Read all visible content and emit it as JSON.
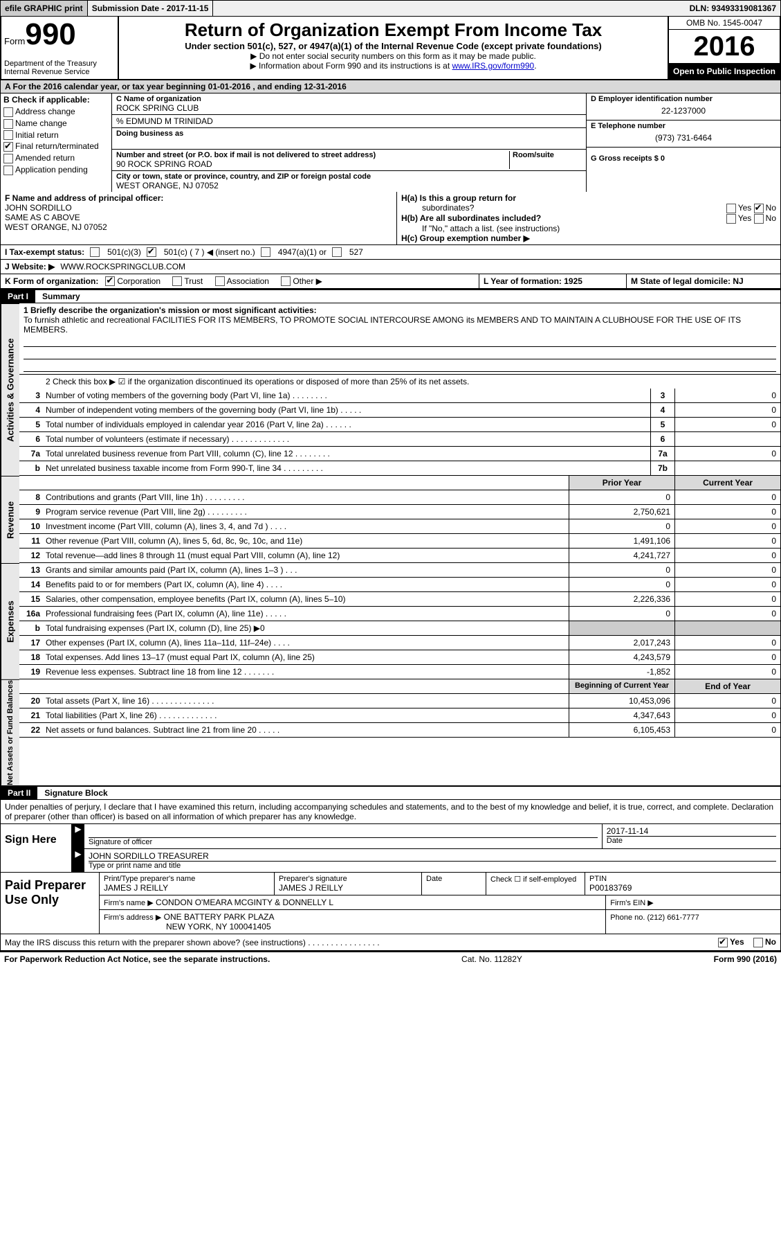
{
  "topbar": {
    "efile": "efile GRAPHIC print",
    "submission": "Submission Date - 2017-11-15",
    "dln": "DLN: 93493319081367"
  },
  "header": {
    "form_word": "Form",
    "form_number": "990",
    "dept1": "Department of the Treasury",
    "dept2": "Internal Revenue Service",
    "title": "Return of Organization Exempt From Income Tax",
    "subtitle": "Under section 501(c), 527, or 4947(a)(1) of the Internal Revenue Code (except private foundations)",
    "note1": "▶ Do not enter social security numbers on this form as it may be made public.",
    "note2_pre": "▶ Information about Form 990 and its instructions is at ",
    "note2_link": "www.IRS.gov/form990",
    "note2_post": ".",
    "omb": "OMB No. 1545-0047",
    "year": "2016",
    "inspect": "Open to Public Inspection"
  },
  "sectionA": "A   For the 2016 calendar year, or tax year beginning 01-01-2016   , and ending 12-31-2016",
  "colB": {
    "hdr": "B Check if applicable:",
    "items": [
      "Address change",
      "Name change",
      "Initial return",
      "Final return/terminated",
      "Amended return",
      "Application pending"
    ],
    "checked_idx": 3
  },
  "colC": {
    "name_lbl": "C Name of organization",
    "name": "ROCK SPRING CLUB",
    "care_of": "% EDMUND M TRINIDAD",
    "dba_lbl": "Doing business as",
    "dba": "",
    "addr_lbl": "Number and street (or P.O. box if mail is not delivered to street address)",
    "room_lbl": "Room/suite",
    "addr": "90 ROCK SPRING ROAD",
    "city_lbl": "City or town, state or province, country, and ZIP or foreign postal code",
    "city": "WEST ORANGE, NJ  07052"
  },
  "colD": {
    "ein_lbl": "D Employer identification number",
    "ein": "22-1237000",
    "tel_lbl": "E Telephone number",
    "tel": "(973) 731-6464",
    "gross_lbl": "G Gross receipts $ 0"
  },
  "rowF": {
    "lbl": "F Name and address of principal officer:",
    "name": "JOHN SORDILLO",
    "addr1": "SAME AS C ABOVE",
    "addr2": "WEST ORANGE, NJ  07052"
  },
  "rowH": {
    "ha": "H(a)  Is this a group return for",
    "ha2": "subordinates?",
    "hb": "H(b)  Are all subordinates included?",
    "hb_note": "If \"No,\" attach a list. (see instructions)",
    "hc": "H(c)  Group exemption number ▶",
    "yes": "Yes",
    "no": "No"
  },
  "rowI": {
    "lbl": "I   Tax-exempt status:",
    "opt1": "501(c)(3)",
    "opt2_pre": "501(c) ( 7 ) ◀ (insert no.)",
    "opt3": "4947(a)(1) or",
    "opt4": "527"
  },
  "rowJ": {
    "lbl": "J   Website: ▶",
    "val": "WWW.ROCKSPRINGCLUB.COM"
  },
  "rowK": {
    "lbl": "K Form of organization:",
    "opts": [
      "Corporation",
      "Trust",
      "Association",
      "Other ▶"
    ],
    "checked_idx": 0
  },
  "rowL": {
    "lbl": "L Year of formation: 1925"
  },
  "rowM": {
    "lbl": "M State of legal domicile: NJ"
  },
  "part1": {
    "num": "Part I",
    "title": "Summary"
  },
  "mission": {
    "lbl": "1   Briefly describe the organization's mission or most significant activities:",
    "text": "To furnish athletic and recreational FACILITIES FOR ITS MEMBERS, TO PROMOTE SOCIAL INTERCOURSE AMONG its MEMBERS AND TO MAINTAIN A CLUBHOUSE FOR THE USE OF ITS MEMBERS."
  },
  "line2": "2   Check this box ▶ ☑  if the organization discontinued its operations or disposed of more than 25% of its net assets.",
  "govRows": [
    {
      "n": "3",
      "d": "Number of voting members of the governing body (Part VI, line 1a)  .    .    .    .    .    .    .    .",
      "b": "3",
      "v": "0"
    },
    {
      "n": "4",
      "d": "Number of independent voting members of the governing body (Part VI, line 1b)  .    .    .    .    .",
      "b": "4",
      "v": "0"
    },
    {
      "n": "5",
      "d": "Total number of individuals employed in calendar year 2016 (Part V, line 2a)  .    .    .    .    .    .",
      "b": "5",
      "v": "0"
    },
    {
      "n": "6",
      "d": "Total number of volunteers (estimate if necessary)  .    .    .    .    .    .    .    .    .    .    .    .    .",
      "b": "6",
      "v": ""
    },
    {
      "n": "7a",
      "d": "Total unrelated business revenue from Part VIII, column (C), line 12  .    .    .    .    .    .    .    .",
      "b": "7a",
      "v": "0"
    },
    {
      "n": "b",
      "d": "Net unrelated business taxable income from Form 990-T, line 34   .    .    .    .    .    .    .    .    .",
      "b": "7b",
      "v": ""
    }
  ],
  "revExpHeader": {
    "prior": "Prior Year",
    "current": "Current Year"
  },
  "revRows": [
    {
      "n": "8",
      "d": "Contributions and grants (Part VIII, line 1h)   .    .    .    .    .    .    .    .    .",
      "p": "0",
      "c": "0"
    },
    {
      "n": "9",
      "d": "Program service revenue (Part VIII, line 2g)   .    .    .    .    .    .    .    .    .",
      "p": "2,750,621",
      "c": "0"
    },
    {
      "n": "10",
      "d": "Investment income (Part VIII, column (A), lines 3, 4, and 7d )  .    .    .    .",
      "p": "0",
      "c": "0"
    },
    {
      "n": "11",
      "d": "Other revenue (Part VIII, column (A), lines 5, 6d, 8c, 9c, 10c, and 11e)",
      "p": "1,491,106",
      "c": "0"
    },
    {
      "n": "12",
      "d": "Total revenue—add lines 8 through 11 (must equal Part VIII, column (A), line 12)",
      "p": "4,241,727",
      "c": "0"
    }
  ],
  "expRows": [
    {
      "n": "13",
      "d": "Grants and similar amounts paid (Part IX, column (A), lines 1–3 )  .    .    .",
      "p": "0",
      "c": "0"
    },
    {
      "n": "14",
      "d": "Benefits paid to or for members (Part IX, column (A), line 4)  .    .    .    .",
      "p": "0",
      "c": "0"
    },
    {
      "n": "15",
      "d": "Salaries, other compensation, employee benefits (Part IX, column (A), lines 5–10)",
      "p": "2,226,336",
      "c": "0"
    },
    {
      "n": "16a",
      "d": "Professional fundraising fees (Part IX, column (A), line 11e)  .    .    .    .    .",
      "p": "0",
      "c": "0"
    },
    {
      "n": "b",
      "d": "Total fundraising expenses (Part IX, column (D), line 25) ▶0",
      "p": "",
      "c": "",
      "blank": true
    },
    {
      "n": "17",
      "d": "Other expenses (Part IX, column (A), lines 11a–11d, 11f–24e)  .    .    .    .",
      "p": "2,017,243",
      "c": "0"
    },
    {
      "n": "18",
      "d": "Total expenses. Add lines 13–17 (must equal Part IX, column (A), line 25)",
      "p": "4,243,579",
      "c": "0"
    },
    {
      "n": "19",
      "d": "Revenue less expenses. Subtract line 18 from line 12 .    .    .    .    .    .    .",
      "p": "-1,852",
      "c": "0"
    }
  ],
  "netHeader": {
    "prior": "Beginning of Current Year",
    "current": "End of Year"
  },
  "netRows": [
    {
      "n": "20",
      "d": "Total assets (Part X, line 16)  .    .    .    .    .    .    .    .    .    .    .    .    .    .",
      "p": "10,453,096",
      "c": "0"
    },
    {
      "n": "21",
      "d": "Total liabilities (Part X, line 26)  .    .    .    .    .    .    .    .    .    .    .    .    .",
      "p": "4,347,643",
      "c": "0"
    },
    {
      "n": "22",
      "d": "Net assets or fund balances. Subtract line 21 from line 20 .    .    .    .    .",
      "p": "6,105,453",
      "c": "0"
    }
  ],
  "vtabs": {
    "gov": "Activities & Governance",
    "rev": "Revenue",
    "exp": "Expenses",
    "net": "Net Assets or Fund Balances"
  },
  "part2": {
    "num": "Part II",
    "title": "Signature Block"
  },
  "sigText": "Under penalties of perjury, I declare that I have examined this return, including accompanying schedules and statements, and to the best of my knowledge and belief, it is true, correct, and complete. Declaration of preparer (other than officer) is based on all information of which preparer has any knowledge.",
  "sign": {
    "label": "Sign Here",
    "sig_lbl": "Signature of officer",
    "date_lbl": "Date",
    "date": "2017-11-14",
    "name": "JOHN SORDILLO TREASURER",
    "name_lbl": "Type or print name and title"
  },
  "prep": {
    "label": "Paid Preparer Use Only",
    "pname_lbl": "Print/Type preparer's name",
    "pname": "JAMES J REILLY",
    "psig_lbl": "Preparer's signature",
    "psig": "JAMES J REILLY",
    "pdate_lbl": "Date",
    "self_lbl": "Check ☐ if self-employed",
    "ptin_lbl": "PTIN",
    "ptin": "P00183769",
    "firm_lbl": "Firm's name     ▶",
    "firm": "CONDON O'MEARA MCGINTY & DONNELLY L",
    "fein_lbl": "Firm's EIN ▶",
    "faddr_lbl": "Firm's address ▶",
    "faddr": "ONE BATTERY PARK PLAZA",
    "faddr2": "NEW YORK, NY  100041405",
    "phone_lbl": "Phone no. (212) 661-7777"
  },
  "discuss": {
    "text": "May the IRS discuss this return with the preparer shown above? (see instructions)   .    .    .    .    .    .    .    .    .    .    .    .    .    .    .    .",
    "yes": "Yes",
    "no": "No"
  },
  "footer": {
    "left": "For Paperwork Reduction Act Notice, see the separate instructions.",
    "mid": "Cat. No. 11282Y",
    "right": "Form 990 (2016)"
  }
}
